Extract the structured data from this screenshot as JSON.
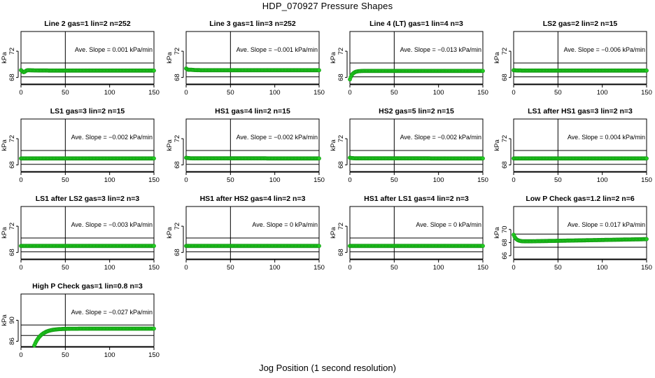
{
  "figure": {
    "title": "HDP_070927  Pressure Shapes",
    "xlabel": "Jog Position (1 second resolution)"
  },
  "style": {
    "point_color": "#22cc22",
    "point_edge": "#119911",
    "axis_color": "#000000"
  },
  "chart_data": [
    {
      "type": "scatter",
      "title": "Line 2 gas=1 lin=2 n=252",
      "ylabel": "kPa",
      "xlim": [
        0,
        150
      ],
      "ylim": [
        67,
        75
      ],
      "xticks": [
        "0",
        "50",
        "100",
        "150"
      ],
      "yticks": [
        68,
        72
      ],
      "hlines": [
        68.1,
        70.2
      ],
      "vline": 50,
      "annotation": "Ave. Slope =  0.001  kPa/min",
      "shape": {
        "start": 69.2,
        "dip": 68.7,
        "dip_x": 3,
        "dip_width": 2.5,
        "settle": 69.05,
        "tau": 8,
        "slope": 0.0
      }
    },
    {
      "type": "scatter",
      "title": "Line 3 gas=1 lin=3 n=252",
      "ylabel": "kPa",
      "xlim": [
        0,
        150
      ],
      "ylim": [
        67,
        75
      ],
      "xticks": [
        "0",
        "50",
        "100",
        "150"
      ],
      "yticks": [
        68,
        72
      ],
      "hlines": [
        68.1,
        70.2
      ],
      "vline": 50,
      "annotation": "Ave. Slope =  −0.001  kPa/min",
      "shape": {
        "start": 69.4,
        "dip": 69.0,
        "dip_x": 2,
        "dip_width": 2,
        "settle": 69.1,
        "tau": 4,
        "slope": 0.0
      }
    },
    {
      "type": "scatter",
      "title": "Line 4 (LT) gas=1 lin=4 n=3",
      "ylabel": "kPa",
      "xlim": [
        0,
        150
      ],
      "ylim": [
        67,
        75
      ],
      "xticks": [
        "0",
        "50",
        "100",
        "150"
      ],
      "yticks": [
        68,
        72
      ],
      "hlines": [
        68.1,
        70.2
      ],
      "vline": 50,
      "annotation": "Ave. Slope =  −0.013  kPa/min",
      "shape": {
        "start": 67.7,
        "dip": 67.7,
        "dip_x": 0,
        "dip_width": 1,
        "settle": 69.0,
        "tau": 3,
        "slope": 0.0
      }
    },
    {
      "type": "scatter",
      "title": "LS2 gas=2 lin=2 n=15",
      "ylabel": "kPa",
      "xlim": [
        0,
        150
      ],
      "ylim": [
        67,
        75
      ],
      "xticks": [
        "0",
        "50",
        "100",
        "150"
      ],
      "yticks": [
        68,
        72
      ],
      "hlines": [
        68.1,
        70.2
      ],
      "vline": 50,
      "annotation": "Ave. Slope =  −0.006  kPa/min",
      "shape": {
        "start": 69.1,
        "dip": 69.1,
        "dip_x": 0,
        "dip_width": 1,
        "settle": 69.05,
        "tau": 3,
        "slope": 0.0
      }
    },
    {
      "type": "scatter",
      "title": "LS1 gas=3 lin=2 n=15",
      "ylabel": "kPa",
      "xlim": [
        0,
        150
      ],
      "ylim": [
        67,
        75
      ],
      "xticks": [
        "0",
        "50",
        "100",
        "150"
      ],
      "yticks": [
        68,
        72
      ],
      "hlines": [
        68.1,
        70.2
      ],
      "vline": 50,
      "annotation": "Ave. Slope =  −0.002  kPa/min",
      "shape": {
        "start": 69.0,
        "dip": 69.0,
        "dip_x": 0,
        "dip_width": 1,
        "settle": 69.0,
        "tau": 3,
        "slope": 0.0
      }
    },
    {
      "type": "scatter",
      "title": "HS1 gas=4 lin=2 n=15",
      "ylabel": "kPa",
      "xlim": [
        0,
        150
      ],
      "ylim": [
        67,
        75
      ],
      "xticks": [
        "0",
        "50",
        "100",
        "150"
      ],
      "yticks": [
        68,
        72
      ],
      "hlines": [
        68.1,
        70.2
      ],
      "vline": 50,
      "annotation": "Ave. Slope =  −0.002  kPa/min",
      "shape": {
        "start": 69.1,
        "dip": 69.1,
        "dip_x": 0,
        "dip_width": 1,
        "settle": 69.0,
        "tau": 3,
        "slope": 0.0
      }
    },
    {
      "type": "scatter",
      "title": "HS2 gas=5 lin=2 n=15",
      "ylabel": "kPa",
      "xlim": [
        0,
        150
      ],
      "ylim": [
        67,
        75
      ],
      "xticks": [
        "0",
        "50",
        "100",
        "150"
      ],
      "yticks": [
        68,
        72
      ],
      "hlines": [
        68.1,
        70.2
      ],
      "vline": 50,
      "annotation": "Ave. Slope =  −0.002  kPa/min",
      "shape": {
        "start": 69.1,
        "dip": 69.1,
        "dip_x": 0,
        "dip_width": 1,
        "settle": 69.0,
        "tau": 3,
        "slope": 0.0
      }
    },
    {
      "type": "scatter",
      "title": "LS1 after HS1 gas=3 lin=2 n=3",
      "ylabel": "kPa",
      "xlim": [
        0,
        150
      ],
      "ylim": [
        67,
        75
      ],
      "xticks": [
        "0",
        "50",
        "100",
        "150"
      ],
      "yticks": [
        68,
        72
      ],
      "hlines": [
        68.1,
        70.2
      ],
      "vline": 50,
      "annotation": "Ave. Slope =  0.004  kPa/min",
      "shape": {
        "start": 69.0,
        "dip": 69.0,
        "dip_x": 0,
        "dip_width": 1,
        "settle": 69.0,
        "tau": 3,
        "slope": 0.0
      }
    },
    {
      "type": "scatter",
      "title": "LS1 after LS2 gas=3 lin=2 n=3",
      "ylabel": "kPa",
      "xlim": [
        0,
        150
      ],
      "ylim": [
        67,
        75
      ],
      "xticks": [
        "0",
        "50",
        "100",
        "150"
      ],
      "yticks": [
        68,
        72
      ],
      "hlines": [
        68.1,
        70.2
      ],
      "vline": 50,
      "annotation": "Ave. Slope =  −0.003  kPa/min",
      "shape": {
        "start": 69.0,
        "dip": 69.0,
        "dip_x": 0,
        "dip_width": 1,
        "settle": 69.0,
        "tau": 3,
        "slope": 0.0
      }
    },
    {
      "type": "scatter",
      "title": "HS1 after HS2 gas=4 lin=2 n=3",
      "ylabel": "kPa",
      "xlim": [
        0,
        150
      ],
      "ylim": [
        67,
        75
      ],
      "xticks": [
        "0",
        "50",
        "100",
        "150"
      ],
      "yticks": [
        68,
        72
      ],
      "hlines": [
        68.1,
        70.2
      ],
      "vline": 50,
      "annotation": "Ave. Slope =  0  kPa/min",
      "shape": {
        "start": 69.0,
        "dip": 69.0,
        "dip_x": 0,
        "dip_width": 1,
        "settle": 69.0,
        "tau": 3,
        "slope": 0.0
      }
    },
    {
      "type": "scatter",
      "title": "HS1 after LS1 gas=4 lin=2 n=3",
      "ylabel": "kPa",
      "xlim": [
        0,
        150
      ],
      "ylim": [
        67,
        75
      ],
      "xticks": [
        "0",
        "50",
        "100",
        "150"
      ],
      "yticks": [
        68,
        72
      ],
      "hlines": [
        68.1,
        70.2
      ],
      "vline": 50,
      "annotation": "Ave. Slope =  0  kPa/min",
      "shape": {
        "start": 69.0,
        "dip": 69.0,
        "dip_x": 0,
        "dip_width": 1,
        "settle": 69.0,
        "tau": 3,
        "slope": 0.0
      }
    },
    {
      "type": "scatter",
      "title": "Low P Check gas=1.2 lin=2 n=6",
      "ylabel": "kPa",
      "xlim": [
        0,
        150
      ],
      "ylim": [
        65.5,
        73.5
      ],
      "xticks": [
        "0",
        "50",
        "100",
        "150"
      ],
      "yticks": [
        66,
        68,
        70
      ],
      "hlines": [
        67.3,
        69.3
      ],
      "vline": 50,
      "annotation": "Ave. Slope =  0.017  kPa/min",
      "shape": {
        "start": 69.2,
        "dip": 69.2,
        "dip_x": 0,
        "dip_width": 1,
        "settle": 68.15,
        "tau": 3,
        "slope": 0.0025
      }
    },
    {
      "type": "scatter",
      "title": "High P Check gas=1 lin=0.8 n=3",
      "ylabel": "kPa",
      "xlim": [
        0,
        150
      ],
      "ylim": [
        85,
        95
      ],
      "xticks": [
        "0",
        "50",
        "100",
        "150"
      ],
      "yticks": [
        86,
        90
      ],
      "hlines": [
        87.1,
        89.1
      ],
      "vline": 50,
      "annotation": "Ave. Slope =  −0.027  kPa/min",
      "shape": {
        "start": 85.2,
        "dip": 85.2,
        "dip_x": 0,
        "dip_width": 1,
        "settle": 88.4,
        "tau": 8,
        "slope": 0.0,
        "x_start": 15
      }
    }
  ]
}
